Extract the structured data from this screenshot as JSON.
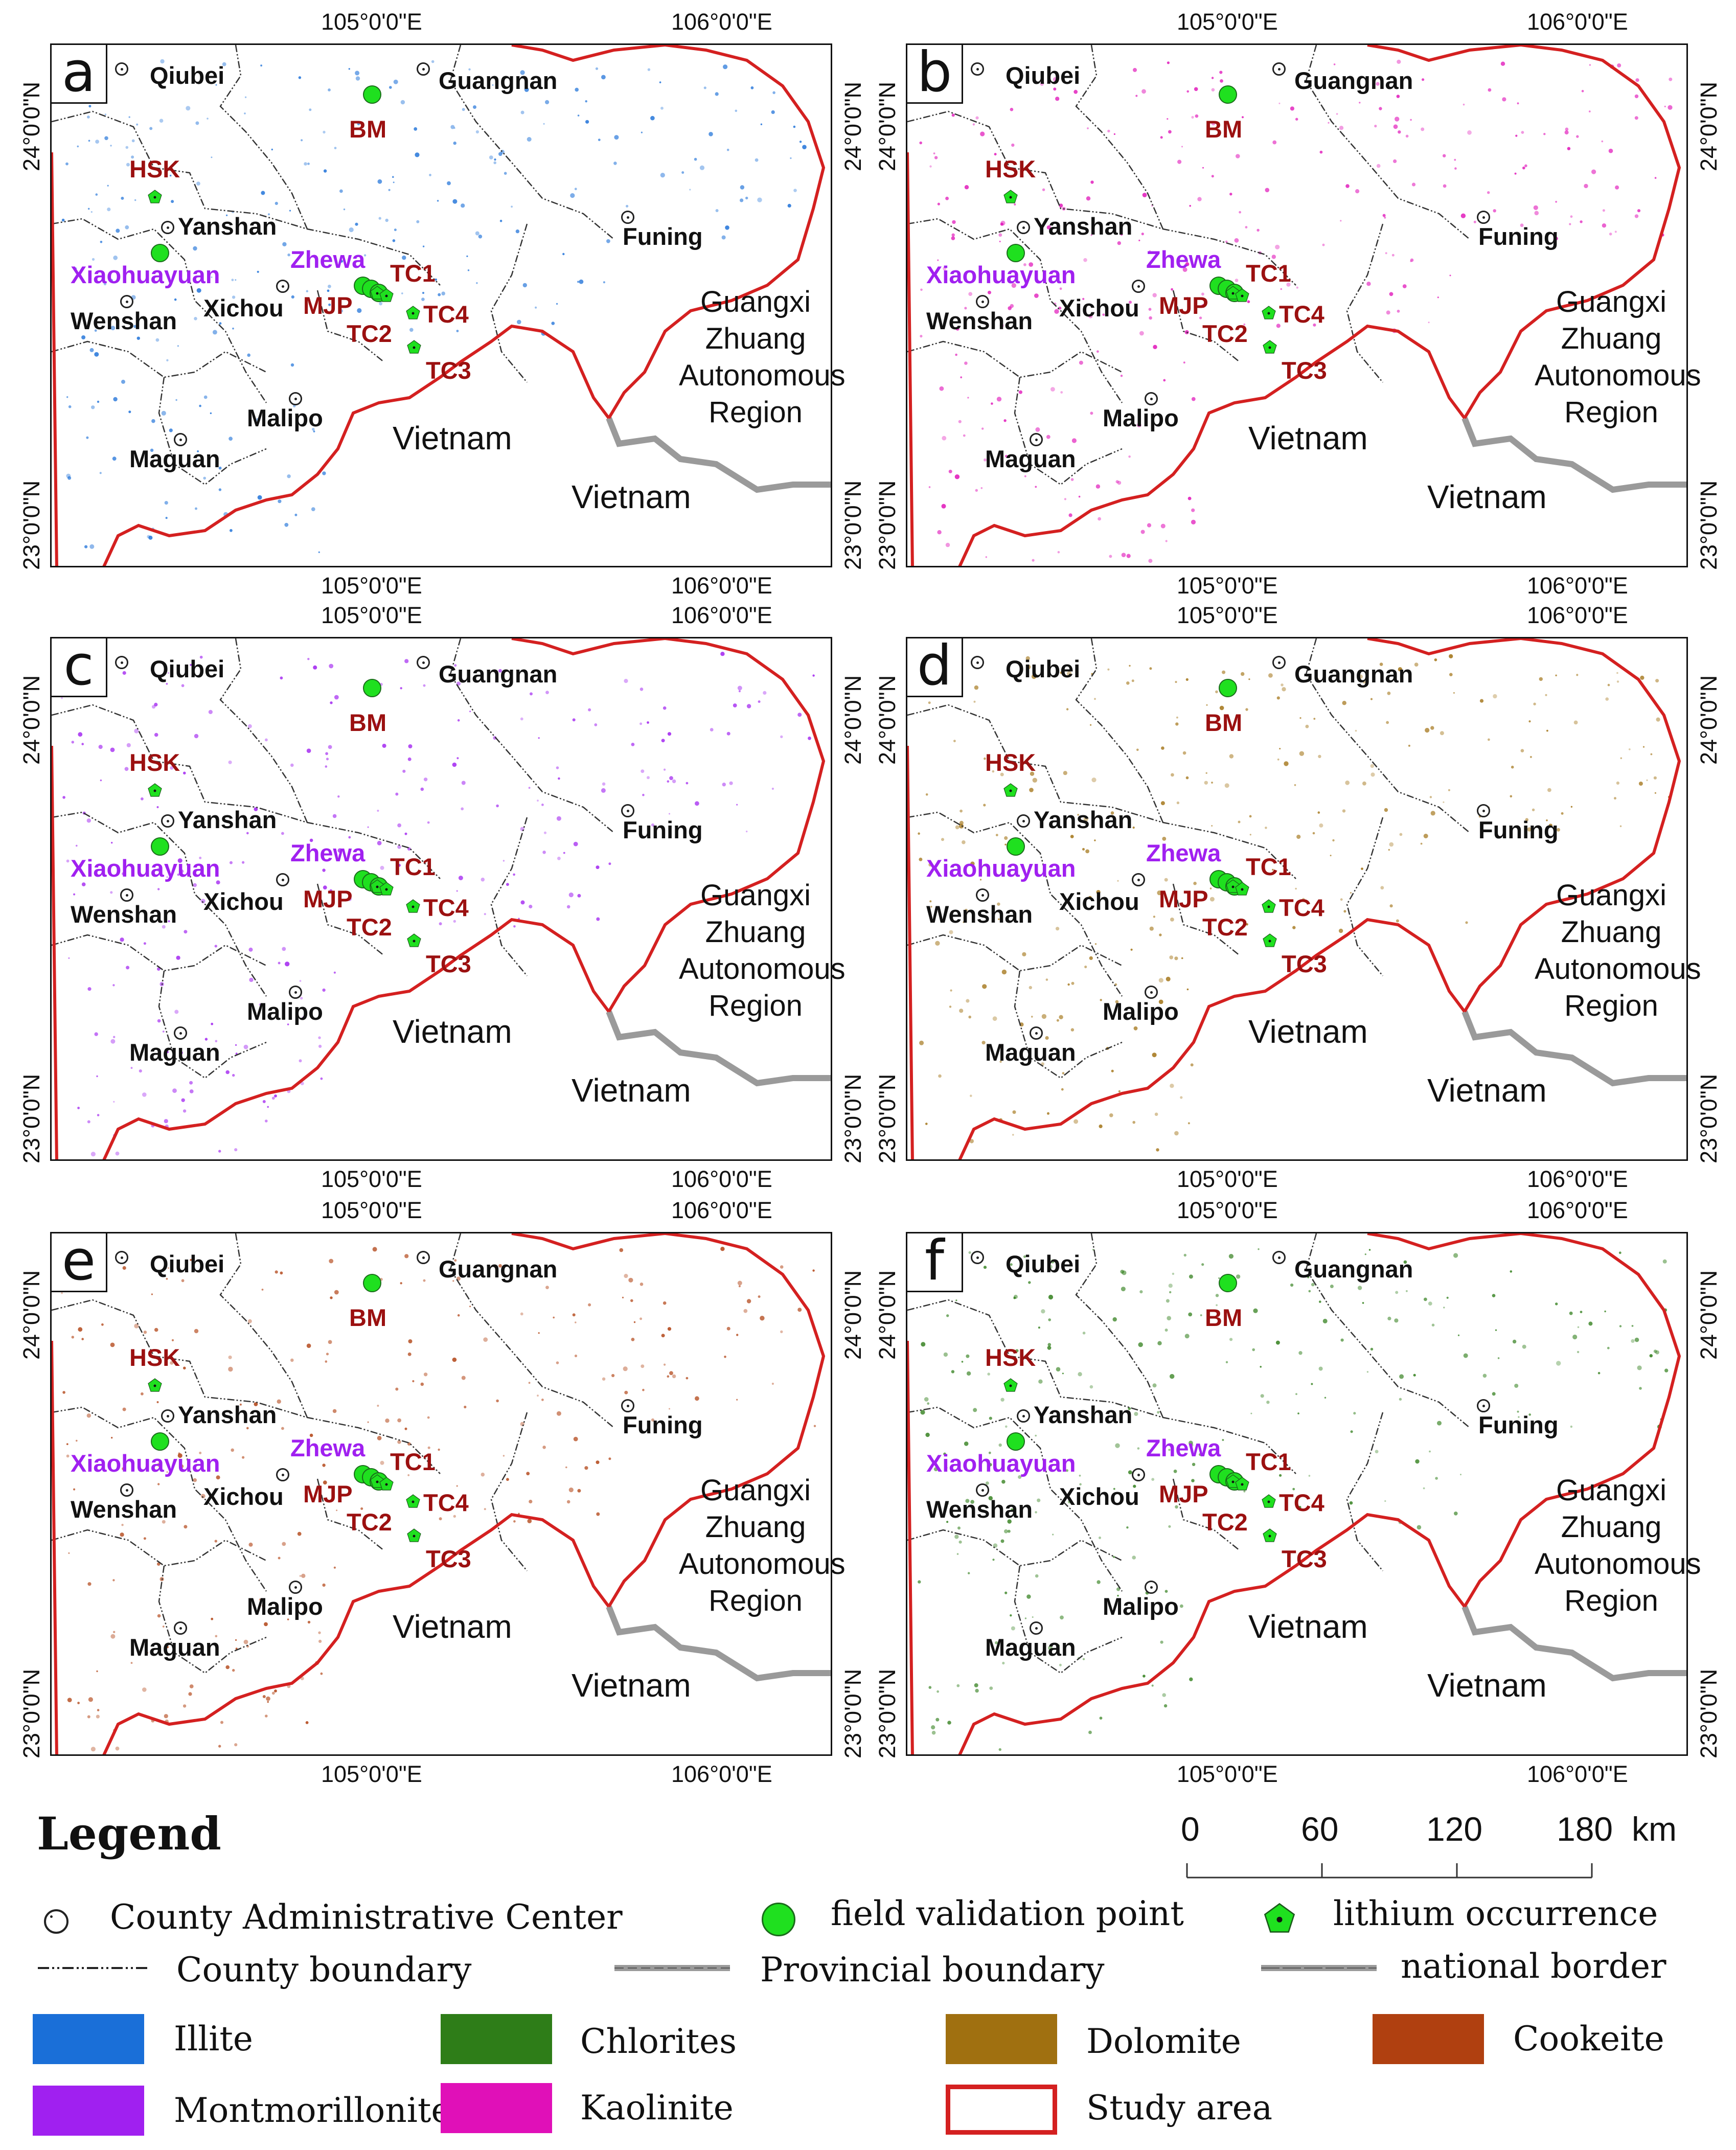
{
  "panels": [
    {
      "letter": "a",
      "mineral": "Illite",
      "color": "#1a6fd8"
    },
    {
      "letter": "b",
      "mineral": "Kaolinite",
      "color": "#e010b8"
    },
    {
      "letter": "c",
      "mineral": "Montmorillonite",
      "color": "#a020f0"
    },
    {
      "letter": "d",
      "mineral": "Dolomite",
      "color": "#a07010"
    },
    {
      "letter": "e",
      "mineral": "Cookeite",
      "color": "#b04010"
    },
    {
      "letter": "f",
      "mineral": "Chlorites",
      "color": "#2e7d18"
    }
  ],
  "ticks": {
    "lon1": "105°0'0\"E",
    "lon2": "106°0'0\"E",
    "lat1": "24°0'0\"N",
    "lat2": "23°0'0\"N"
  },
  "counties": [
    "Qiubei",
    "Guangnan",
    "Yanshan",
    "Funing",
    "Wenshan",
    "Xichou",
    "Malipo",
    "Maguan"
  ],
  "sites": {
    "bm": "BM",
    "hsk": "HSK",
    "xiaohuayuan": "Xiaohuayuan",
    "zhewa": "Zhewa",
    "mjp": "MJP",
    "tc1": "TC1",
    "tc2": "TC2",
    "tc3": "TC3",
    "tc4": "TC4"
  },
  "regions": {
    "guangxi": "Guangxi Zhuang Autonomous Region",
    "guangxi_lines": [
      "Guangxi",
      "Zhuang",
      "Autonomous",
      "Region"
    ],
    "vietnam": "Vietnam"
  },
  "legend": {
    "title": "Legend",
    "county_center": "County  Administrative Center",
    "field_point": "field validation point",
    "lithium": "lithium occurrence",
    "county_boundary": "County boundary",
    "provincial_boundary": "Provincial boundary",
    "national_border": "national border",
    "minerals": [
      {
        "label": "Illite",
        "color": "#1a6fd8"
      },
      {
        "label": "Chlorites",
        "color": "#2e7d18"
      },
      {
        "label": "Dolomite",
        "color": "#a07010"
      },
      {
        "label": "Cookeite",
        "color": "#b04010"
      },
      {
        "label": "Montmorillonite",
        "color": "#a020f0"
      },
      {
        "label": "Kaolinite",
        "color": "#e010b8"
      }
    ],
    "study_area": "Study area",
    "study_area_color": "#d42020"
  },
  "scale": {
    "labels": [
      "0",
      "60",
      "120",
      "180"
    ],
    "unit": "km"
  }
}
